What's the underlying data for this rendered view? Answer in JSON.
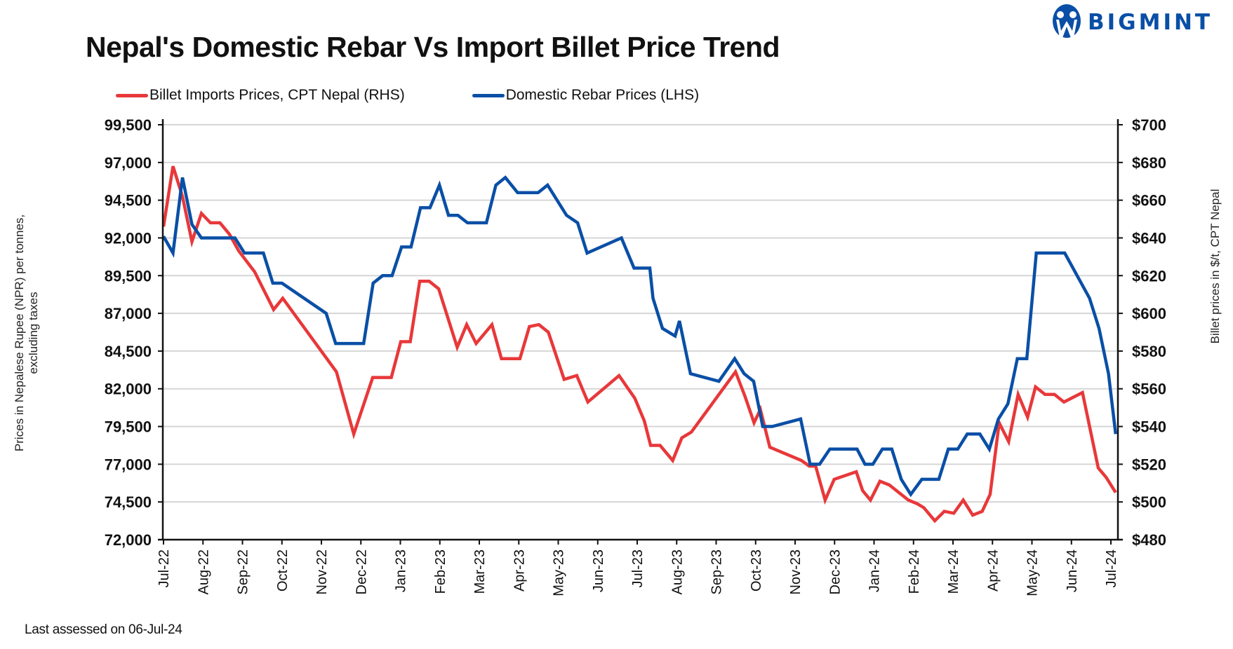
{
  "header": {
    "title": "Nepal's Domestic Rebar Vs Import Billet Price Trend",
    "brand": "BIGMINT",
    "brand_icon": "bigmint-logo-icon",
    "brand_color": "#0a4fa6"
  },
  "footnote": "Last assessed on 06-Jul-24",
  "chart_data": {
    "type": "line",
    "title": "Nepal's Domestic Rebar Vs Import Billet Price Trend",
    "xlabel": "",
    "ylabel": "Prices in Nepalese Rupee (NPR) per tonnes,\nexcluding taxes",
    "ylabel_lines": [
      "Prices in Nepalese Rupee (NPR) per tonnes,",
      "excluding taxes"
    ],
    "y2label": "Billet prices in $/t, CPT Nepal",
    "ylim": [
      72000,
      99500
    ],
    "y2lim": [
      480,
      700
    ],
    "yticks": [
      72000,
      74500,
      77000,
      79500,
      82000,
      84500,
      87000,
      89500,
      92000,
      94500,
      97000,
      99500
    ],
    "ytick_labels": [
      "72,000",
      "74,500",
      "77,000",
      "79,500",
      "82,000",
      "84,500",
      "87,000",
      "89,500",
      "92,000",
      "94,500",
      "97,000",
      "99,500"
    ],
    "y2ticks": [
      480,
      500,
      520,
      540,
      560,
      580,
      600,
      620,
      640,
      660,
      680,
      700
    ],
    "y2tick_labels": [
      "$480",
      "$500",
      "$520",
      "$540",
      "$560",
      "$580",
      "$600",
      "$620",
      "$640",
      "$660",
      "$680",
      "$700"
    ],
    "x_unit": "months since Jul-22",
    "xlim": [
      0,
      24
    ],
    "categories": [
      "Jul-22",
      "Aug-22",
      "Sep-22",
      "Oct-22",
      "Nov-22",
      "Dec-22",
      "Jan-23",
      "Feb-23",
      "Mar-23",
      "Apr-23",
      "May-23",
      "Jun-23",
      "Jul-23",
      "Aug-23",
      "Sep-23",
      "Oct-23",
      "Nov-23",
      "Dec-23",
      "Jan-24",
      "Feb-24",
      "Mar-24",
      "Apr-24",
      "May-24",
      "Jun-24",
      "Jul-24"
    ],
    "grid": true,
    "legend_position": "top-left",
    "series": [
      {
        "name": "Billet Imports Prices, CPT Nepal (RHS)",
        "axis": "right",
        "color": "#e8383a",
        "points": [
          [
            0.0,
            646
          ],
          [
            0.24,
            678
          ],
          [
            0.48,
            662
          ],
          [
            0.72,
            638
          ],
          [
            0.96,
            653
          ],
          [
            1.19,
            648
          ],
          [
            1.43,
            648
          ],
          [
            1.67,
            642
          ],
          [
            1.91,
            633
          ],
          [
            2.31,
            622
          ],
          [
            2.79,
            602
          ],
          [
            3.02,
            608
          ],
          [
            4.38,
            569
          ],
          [
            4.82,
            536
          ],
          [
            5.3,
            566
          ],
          [
            5.77,
            566
          ],
          [
            6.01,
            585
          ],
          [
            6.25,
            585
          ],
          [
            6.49,
            617
          ],
          [
            6.73,
            617
          ],
          [
            6.97,
            613
          ],
          [
            7.44,
            582
          ],
          [
            7.68,
            594
          ],
          [
            7.92,
            584
          ],
          [
            8.32,
            594
          ],
          [
            8.56,
            576
          ],
          [
            9.03,
            576
          ],
          [
            9.27,
            593
          ],
          [
            9.51,
            594
          ],
          [
            9.75,
            590
          ],
          [
            10.15,
            565
          ],
          [
            10.47,
            567
          ],
          [
            10.75,
            553
          ],
          [
            11.54,
            567
          ],
          [
            11.94,
            555
          ],
          [
            12.18,
            543
          ],
          [
            12.34,
            530
          ],
          [
            12.58,
            530
          ],
          [
            12.9,
            522
          ],
          [
            13.13,
            534
          ],
          [
            13.37,
            537
          ],
          [
            14.49,
            569
          ],
          [
            14.73,
            556
          ],
          [
            14.96,
            542
          ],
          [
            15.12,
            549
          ],
          [
            15.36,
            529
          ],
          [
            16.16,
            522
          ],
          [
            16.36,
            519
          ],
          [
            16.52,
            519
          ],
          [
            16.76,
            501
          ],
          [
            16.99,
            512
          ],
          [
            17.55,
            516
          ],
          [
            17.71,
            506
          ],
          [
            17.91,
            501
          ],
          [
            18.15,
            511
          ],
          [
            18.39,
            509
          ],
          [
            18.87,
            501
          ],
          [
            19.1,
            499
          ],
          [
            19.26,
            497
          ],
          [
            19.54,
            490
          ],
          [
            19.78,
            495
          ],
          [
            20.02,
            494
          ],
          [
            20.26,
            501
          ],
          [
            20.5,
            493
          ],
          [
            20.74,
            495
          ],
          [
            20.94,
            504
          ],
          [
            21.17,
            542
          ],
          [
            21.41,
            532
          ],
          [
            21.65,
            557
          ],
          [
            21.89,
            545
          ],
          [
            22.09,
            561
          ],
          [
            22.33,
            557
          ],
          [
            22.57,
            557
          ],
          [
            22.81,
            553
          ],
          [
            23.28,
            558
          ],
          [
            23.68,
            518
          ],
          [
            23.88,
            513
          ],
          [
            24.12,
            505
          ]
        ]
      },
      {
        "name": "Domestic Rebar Prices (LHS)",
        "axis": "left",
        "color": "#0a4fa6",
        "points": [
          [
            0.0,
            92100
          ],
          [
            0.24,
            91000
          ],
          [
            0.48,
            96000
          ],
          [
            0.72,
            92900
          ],
          [
            0.96,
            92000
          ],
          [
            1.81,
            92000
          ],
          [
            2.05,
            91000
          ],
          [
            2.53,
            91000
          ],
          [
            2.77,
            89000
          ],
          [
            3.0,
            89000
          ],
          [
            4.12,
            87000
          ],
          [
            4.36,
            85000
          ],
          [
            5.07,
            85000
          ],
          [
            5.31,
            89000
          ],
          [
            5.55,
            89500
          ],
          [
            5.79,
            89500
          ],
          [
            6.03,
            91400
          ],
          [
            6.27,
            91400
          ],
          [
            6.51,
            94000
          ],
          [
            6.75,
            94000
          ],
          [
            6.99,
            95500
          ],
          [
            7.22,
            93500
          ],
          [
            7.46,
            93500
          ],
          [
            7.7,
            93000
          ],
          [
            8.18,
            93000
          ],
          [
            8.42,
            95500
          ],
          [
            8.66,
            96000
          ],
          [
            8.97,
            95000
          ],
          [
            9.49,
            95000
          ],
          [
            9.73,
            95500
          ],
          [
            10.21,
            93500
          ],
          [
            10.49,
            93000
          ],
          [
            10.73,
            91000
          ],
          [
            11.6,
            92000
          ],
          [
            11.92,
            90000
          ],
          [
            12.32,
            90000
          ],
          [
            12.4,
            88000
          ],
          [
            12.64,
            86000
          ],
          [
            12.96,
            85500
          ],
          [
            13.07,
            86500
          ],
          [
            13.35,
            83000
          ],
          [
            14.07,
            82500
          ],
          [
            14.47,
            84000
          ],
          [
            14.71,
            83000
          ],
          [
            14.95,
            82500
          ],
          [
            15.18,
            79500
          ],
          [
            15.42,
            79500
          ],
          [
            16.14,
            80000
          ],
          [
            16.38,
            77000
          ],
          [
            16.62,
            77000
          ],
          [
            16.88,
            78000
          ],
          [
            17.57,
            78000
          ],
          [
            17.77,
            77000
          ],
          [
            17.97,
            77000
          ],
          [
            18.21,
            78000
          ],
          [
            18.45,
            78000
          ],
          [
            18.69,
            76000
          ],
          [
            18.93,
            75000
          ],
          [
            19.21,
            76000
          ],
          [
            19.64,
            76000
          ],
          [
            19.88,
            78000
          ],
          [
            20.12,
            78000
          ],
          [
            20.36,
            79000
          ],
          [
            20.68,
            79000
          ],
          [
            20.92,
            78000
          ],
          [
            21.15,
            80000
          ],
          [
            21.39,
            81000
          ],
          [
            21.63,
            84000
          ],
          [
            21.87,
            84000
          ],
          [
            22.11,
            91000
          ],
          [
            22.83,
            91000
          ],
          [
            23.46,
            88000
          ],
          [
            23.7,
            86000
          ],
          [
            23.94,
            83000
          ],
          [
            24.12,
            79000
          ]
        ]
      }
    ]
  }
}
